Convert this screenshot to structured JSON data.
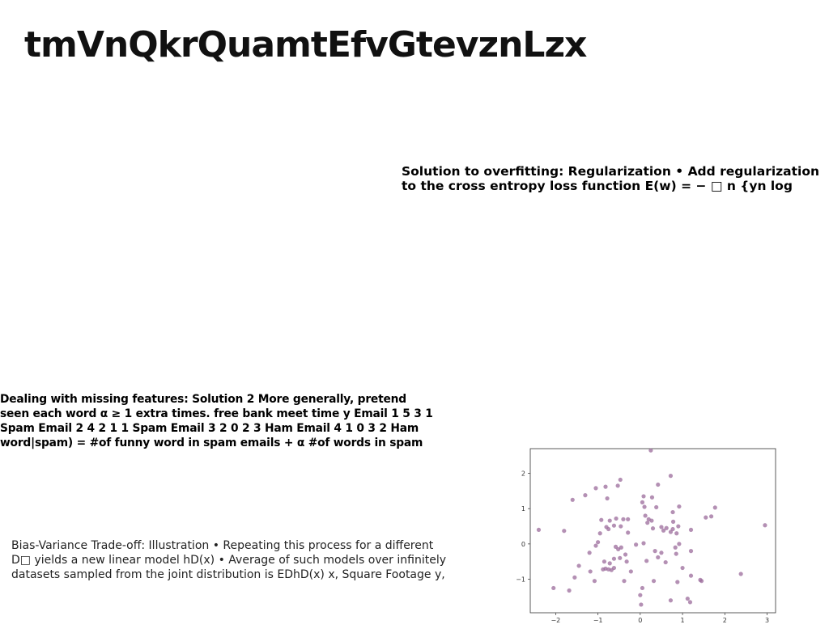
{
  "title": "tmVnQkrQuamtEfvGtevznLzx",
  "block1": {
    "lines": [
      "Solution to overfitting: Regularization • Add regularization",
      "to the cross entropy loss function E(w) = − □ n {yn log"
    ]
  },
  "block2": {
    "lines": [
      "Dealing with missing features: Solution 2 More generally, pretend",
      "seen each word α ≥ 1 extra times. free bank meet time y Email 1 5 3 1",
      "Spam Email 2 4 2 1 1 Spam Email 3 2 0 2 3 Ham Email 4 1 0 3 2 Ham",
      "word|spam) = #of funny word in spam emails + α #of words in spam"
    ]
  },
  "block3": {
    "lines": [
      "Bias-Variance Trade-off: Illustration • Repeating this process for a different",
      "D□ yields a new linear model hD(x) • Average of such models over infinitely",
      "datasets sampled from the joint distribution is EDhD(x) x, Square Footage y,"
    ]
  },
  "chart_data": {
    "type": "scatter",
    "point_color": "#9b6b9b",
    "xlim": [
      -2.6,
      3.2
    ],
    "ylim": [
      -1.95,
      2.7
    ],
    "xticks": [
      -2,
      -1,
      0,
      1,
      2,
      3
    ],
    "yticks": [
      -1,
      0,
      1,
      2
    ],
    "xtick_labels": [
      "−2",
      "−1",
      "0",
      "1",
      "2",
      "3"
    ],
    "ytick_labels": [
      "−1",
      "0",
      "1",
      "2"
    ],
    "points": [
      [
        0.25,
        2.65
      ],
      [
        0.72,
        1.93
      ],
      [
        -1.6,
        1.25
      ],
      [
        -1.05,
        1.58
      ],
      [
        -0.47,
        1.82
      ],
      [
        -1.3,
        1.38
      ],
      [
        -0.82,
        1.62
      ],
      [
        -0.53,
        1.65
      ],
      [
        0.42,
        1.68
      ],
      [
        0.08,
        1.35
      ],
      [
        0.28,
        1.32
      ],
      [
        -0.78,
        1.29
      ],
      [
        0.05,
        1.18
      ],
      [
        0.38,
        1.04
      ],
      [
        0.92,
        1.06
      ],
      [
        1.77,
        1.03
      ],
      [
        0.1,
        1.05
      ],
      [
        0.77,
        0.9
      ],
      [
        0.12,
        0.8
      ],
      [
        1.55,
        0.75
      ],
      [
        1.68,
        0.78
      ],
      [
        -0.57,
        0.72
      ],
      [
        -0.4,
        0.7
      ],
      [
        -0.29,
        0.7
      ],
      [
        -0.72,
        0.66
      ],
      [
        -0.92,
        0.68
      ],
      [
        0.2,
        0.7
      ],
      [
        0.27,
        0.66
      ],
      [
        0.78,
        0.63
      ],
      [
        0.17,
        0.6
      ],
      [
        -0.62,
        0.52
      ],
      [
        -0.8,
        0.48
      ],
      [
        -0.46,
        0.5
      ],
      [
        0.5,
        0.48
      ],
      [
        0.62,
        0.45
      ],
      [
        0.9,
        0.5
      ],
      [
        0.3,
        0.44
      ],
      [
        -2.4,
        0.4
      ],
      [
        -1.8,
        0.37
      ],
      [
        -0.95,
        0.3
      ],
      [
        -0.29,
        0.32
      ],
      [
        0.72,
        0.34
      ],
      [
        0.77,
        0.42
      ],
      [
        0.86,
        0.3
      ],
      [
        1.2,
        0.4
      ],
      [
        2.95,
        0.53
      ],
      [
        -0.75,
        0.42
      ],
      [
        0.55,
        0.38
      ],
      [
        -1.0,
        0.05
      ],
      [
        0.08,
        0.02
      ],
      [
        -0.58,
        -0.08
      ],
      [
        -0.45,
        -0.1
      ],
      [
        0.83,
        -0.1
      ],
      [
        0.92,
        0.0
      ],
      [
        -0.52,
        -0.15
      ],
      [
        -1.05,
        -0.05
      ],
      [
        0.35,
        -0.2
      ],
      [
        0.5,
        -0.25
      ],
      [
        -1.2,
        -0.25
      ],
      [
        -0.35,
        -0.3
      ],
      [
        -0.1,
        -0.02
      ],
      [
        1.2,
        -0.2
      ],
      [
        0.85,
        -0.28
      ],
      [
        -0.48,
        -0.4
      ],
      [
        -0.62,
        -0.42
      ],
      [
        0.42,
        -0.38
      ],
      [
        -0.85,
        -0.5
      ],
      [
        -0.72,
        -0.55
      ],
      [
        0.15,
        -0.48
      ],
      [
        -1.45,
        -0.62
      ],
      [
        -0.32,
        -0.5
      ],
      [
        0.6,
        -0.52
      ],
      [
        1.0,
        -0.68
      ],
      [
        -0.62,
        -0.68
      ],
      [
        -0.82,
        -0.7
      ],
      [
        -0.75,
        -0.72
      ],
      [
        -0.68,
        -0.74
      ],
      [
        -1.18,
        -0.78
      ],
      [
        -0.22,
        -0.78
      ],
      [
        -0.88,
        -0.72
      ],
      [
        2.38,
        -0.85
      ],
      [
        1.2,
        -0.9
      ],
      [
        -1.55,
        -0.95
      ],
      [
        -1.08,
        -1.05
      ],
      [
        -0.38,
        -1.05
      ],
      [
        0.32,
        -1.05
      ],
      [
        1.45,
        -1.05
      ],
      [
        1.42,
        -1.02
      ],
      [
        0.88,
        -1.08
      ],
      [
        -2.05,
        -1.25
      ],
      [
        -1.68,
        -1.32
      ],
      [
        0.05,
        -1.25
      ],
      [
        0.0,
        -1.45
      ],
      [
        1.12,
        -1.55
      ],
      [
        0.72,
        -1.6
      ],
      [
        1.18,
        -1.65
      ],
      [
        0.02,
        -1.72
      ]
    ]
  }
}
